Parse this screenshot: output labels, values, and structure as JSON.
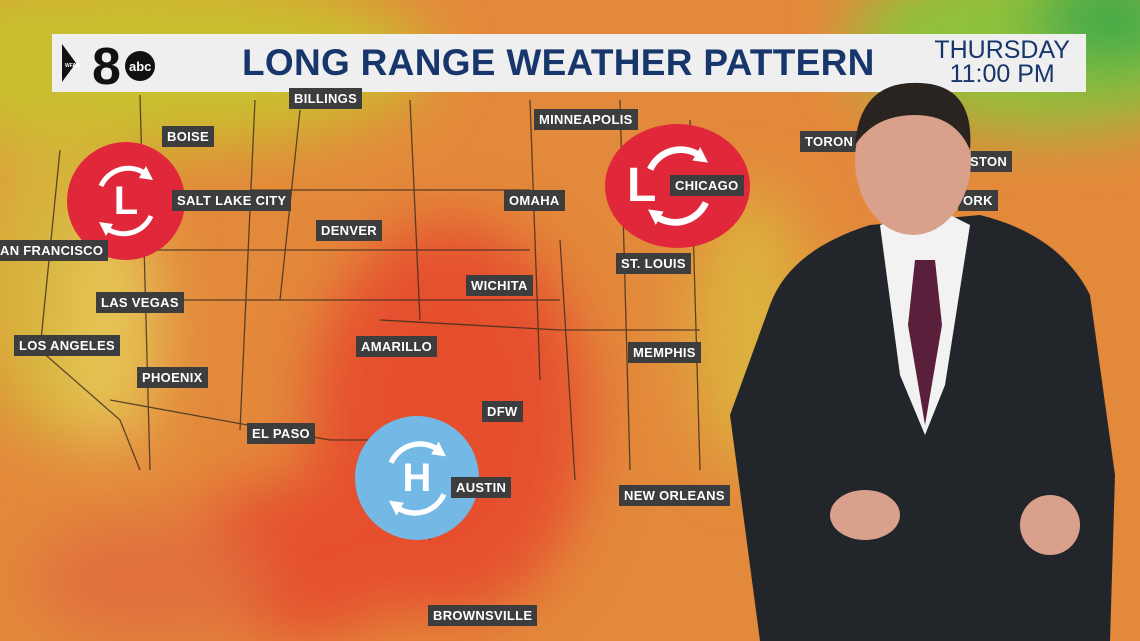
{
  "banner": {
    "station_logo": "WFAA 8 abc",
    "title": "LONG RANGE WEATHER PATTERN",
    "day": "THURSDAY",
    "time": "11:00 PM"
  },
  "cities": [
    {
      "name": "BILLINGS"
    },
    {
      "name": "BOISE"
    },
    {
      "name": "SALT LAKE CITY"
    },
    {
      "name": "AN FRANCISCO"
    },
    {
      "name": "DENVER"
    },
    {
      "name": "LAS VEGAS"
    },
    {
      "name": "LOS ANGELES"
    },
    {
      "name": "PHOENIX"
    },
    {
      "name": "AMARILLO"
    },
    {
      "name": "EL PASO"
    },
    {
      "name": "WICHITA"
    },
    {
      "name": "OMAHA"
    },
    {
      "name": "MINNEAPOLIS"
    },
    {
      "name": "CHICAGO"
    },
    {
      "name": "ST. LOUIS"
    },
    {
      "name": "MEMPHIS"
    },
    {
      "name": "DFW"
    },
    {
      "name": "AUSTIN"
    },
    {
      "name": "NEW ORLEANS"
    },
    {
      "name": "BROWNSVILLE"
    },
    {
      "name": "TORON"
    },
    {
      "name": "STON"
    },
    {
      "name": "ORK"
    }
  ],
  "pressure_systems": [
    {
      "type": "low",
      "letter": "L",
      "near": "SALT LAKE CITY",
      "color": "#e0283a"
    },
    {
      "type": "low",
      "letter": "L",
      "near": "CHICAGO",
      "color": "#e0283a"
    },
    {
      "type": "high",
      "letter": "H",
      "near": "AUSTIN",
      "color": "#74b9e6"
    }
  ],
  "colors": {
    "banner_text": "#17366b",
    "label_bg": "#3d3d3d",
    "heat_core": "#e5502f",
    "warm": "#e48a3a",
    "cool": "#c9c63a"
  }
}
